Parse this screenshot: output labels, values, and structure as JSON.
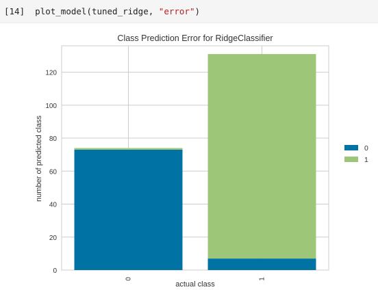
{
  "cell": {
    "prompt": "[14]",
    "code_prefix": "plot_model(tuned_ridge, ",
    "code_string": "\"error\"",
    "code_suffix": ")"
  },
  "colors": {
    "class_0": "#0072a3",
    "class_1": "#9ec678",
    "grid": "#cccccc",
    "axes_border": "#cccccc",
    "code_bg": "#f5f5f5"
  },
  "chart_data": {
    "type": "bar",
    "stacked": true,
    "title": "Class Prediction Error for RidgeClassifier",
    "xlabel": "actual class",
    "ylabel": "number of predicted class",
    "categories": [
      "0",
      "1"
    ],
    "series": [
      {
        "name": "0",
        "values": [
          73,
          7
        ]
      },
      {
        "name": "1",
        "values": [
          1,
          124
        ]
      }
    ],
    "ylim": [
      0,
      136
    ],
    "yticks": [
      0,
      20,
      40,
      60,
      80,
      100,
      120
    ],
    "grid": true,
    "legend_position": "right"
  }
}
